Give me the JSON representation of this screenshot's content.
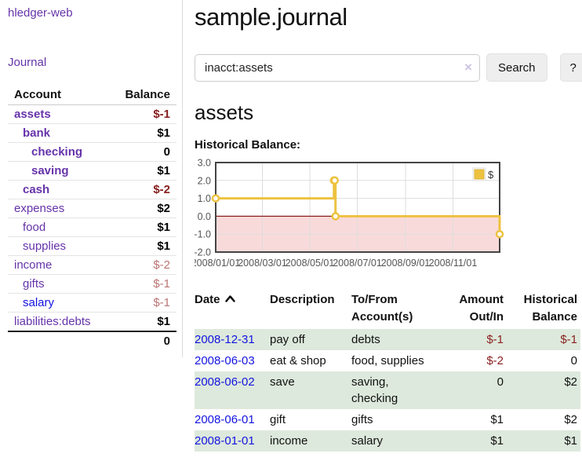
{
  "app": {
    "brand": "hledger-web",
    "nav": {
      "journal": "Journal"
    }
  },
  "colors": {
    "purple_link": "#6633AA",
    "blue_link": "#1414E0",
    "negative_strong": "#871E1E",
    "negative_soft": "#BB7474",
    "register_negative": "#8B2222",
    "row_green": "#DDE9DC",
    "chart_gold": "#EDC240",
    "chart_negative_fill": "#F9DADA",
    "chart_zero_line": "#8B1B1B"
  },
  "sidebar": {
    "header": {
      "account": "Account",
      "balance": "Balance"
    },
    "accounts": [
      {
        "name": "assets",
        "indent": 0,
        "bold": true,
        "blue": false,
        "balance": "$-1",
        "balance_style": "negStrong"
      },
      {
        "name": "bank",
        "indent": 1,
        "bold": true,
        "blue": false,
        "balance": "$1",
        "balance_style": "pos"
      },
      {
        "name": "checking",
        "indent": 2,
        "bold": true,
        "blue": false,
        "balance": "0",
        "balance_style": "pos"
      },
      {
        "name": "saving",
        "indent": 2,
        "bold": true,
        "blue": false,
        "balance": "$1",
        "balance_style": "pos"
      },
      {
        "name": "cash",
        "indent": 1,
        "bold": true,
        "blue": false,
        "balance": "$-2",
        "balance_style": "negStrong"
      },
      {
        "name": "expenses",
        "indent": 0,
        "bold": false,
        "blue": false,
        "balance": "$2",
        "balance_style": "pos"
      },
      {
        "name": "food",
        "indent": 1,
        "bold": false,
        "blue": false,
        "balance": "$1",
        "balance_style": "pos"
      },
      {
        "name": "supplies",
        "indent": 1,
        "bold": false,
        "blue": false,
        "balance": "$1",
        "balance_style": "pos"
      },
      {
        "name": "income",
        "indent": 0,
        "bold": false,
        "blue": false,
        "balance": "$-2",
        "balance_style": "negSoft"
      },
      {
        "name": "gifts",
        "indent": 1,
        "bold": false,
        "blue": false,
        "balance": "$-1",
        "balance_style": "negSoft"
      },
      {
        "name": "salary",
        "indent": 1,
        "bold": false,
        "blue": true,
        "balance": "$-1",
        "balance_style": "negSoft"
      },
      {
        "name": "liabilities:debts",
        "indent": 0,
        "bold": false,
        "blue": false,
        "balance": "$1",
        "balance_style": "pos"
      }
    ],
    "total": "0"
  },
  "main": {
    "title": "sample.journal",
    "search": {
      "value": "inacct:assets",
      "clear_icon": "×",
      "button": "Search",
      "help_button": "?"
    },
    "account_heading": "assets",
    "chart_label": "Historical Balance:"
  },
  "chart_data": {
    "type": "line",
    "title": "Historical Balance",
    "step": true,
    "legend": [
      {
        "label": "$",
        "color": "#EDC240"
      }
    ],
    "legend_position": "top-right",
    "grid": true,
    "ylim": [
      -2,
      3
    ],
    "y_ticks": [
      3.0,
      2.0,
      1.0,
      0.0,
      -1.0,
      -2.0
    ],
    "xlim_days": [
      0,
      365
    ],
    "x_ticks": [
      {
        "label": "2008/01/01",
        "day": 0
      },
      {
        "label": "2008/03/01",
        "day": 60
      },
      {
        "label": "2008/05/01",
        "day": 121
      },
      {
        "label": "2008/07/01",
        "day": 182
      },
      {
        "label": "2008/09/01",
        "day": 244
      },
      {
        "label": "2008/11/01",
        "day": 305
      }
    ],
    "series": [
      {
        "name": "$",
        "color": "#EDC240",
        "points": [
          {
            "date": "2008-01-01",
            "day": 0,
            "y": 1
          },
          {
            "date": "2008-06-01",
            "day": 152,
            "y": 2
          },
          {
            "date": "2008-06-02",
            "day": 153,
            "y": 2
          },
          {
            "date": "2008-06-03",
            "day": 154,
            "y": 0
          },
          {
            "date": "2008-12-31",
            "day": 365,
            "y": -1
          }
        ]
      }
    ],
    "negative_region_shaded": true
  },
  "register": {
    "columns": [
      "Date",
      "Description",
      "To/From Account(s)",
      "Amount Out/In",
      "Historical Balance"
    ],
    "sort": {
      "column": "Date",
      "direction": "ascending"
    },
    "rows": [
      {
        "date": "2008-12-31",
        "description": "pay off",
        "accounts": "debts",
        "amount": "$-1",
        "amount_neg": true,
        "balance": "$-1",
        "balance_neg": true,
        "shaded": true
      },
      {
        "date": "2008-06-03",
        "description": "eat & shop",
        "accounts": "food, supplies",
        "amount": "$-2",
        "amount_neg": true,
        "balance": "0",
        "balance_neg": false,
        "shaded": false
      },
      {
        "date": "2008-06-02",
        "description": "save",
        "accounts": "saving, checking",
        "amount": "0",
        "amount_neg": false,
        "balance": "$2",
        "balance_neg": false,
        "shaded": true
      },
      {
        "date": "2008-06-01",
        "description": "gift",
        "accounts": "gifts",
        "amount": "$1",
        "amount_neg": false,
        "balance": "$2",
        "balance_neg": false,
        "shaded": false
      },
      {
        "date": "2008-01-01",
        "description": "income",
        "accounts": "salary",
        "amount": "$1",
        "amount_neg": false,
        "balance": "$1",
        "balance_neg": false,
        "shaded": true
      }
    ]
  }
}
